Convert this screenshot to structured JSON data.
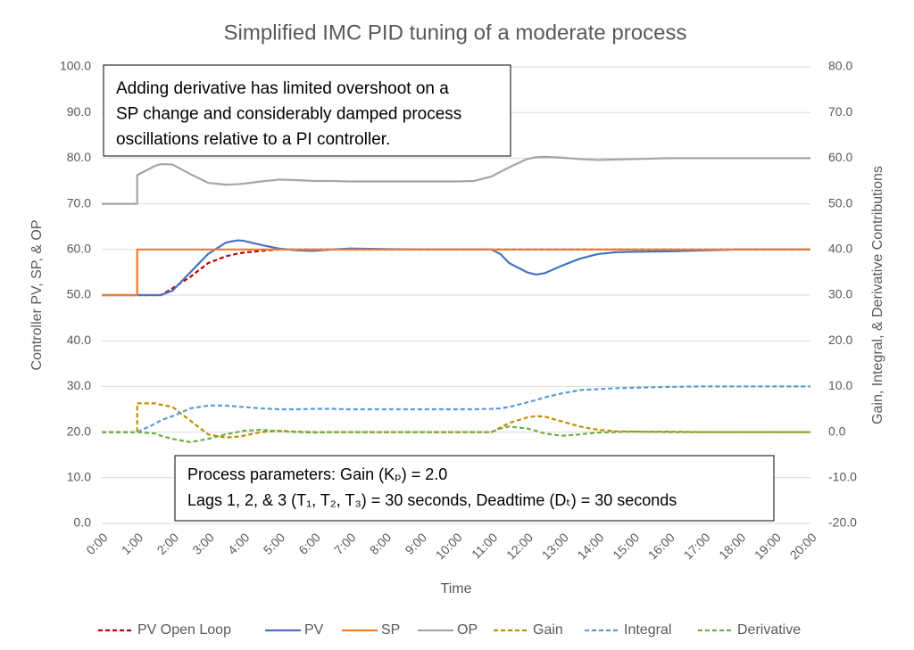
{
  "chart_data": {
    "type": "line",
    "title": "Simplified IMC PID tuning of a moderate process",
    "x_label": "Time",
    "y_label": "Controller PV, SP, & OP",
    "y2_label": "Gain, Integral, & Derivative Contributions",
    "x": [
      0,
      1,
      1,
      1.5,
      1.67,
      2,
      2.5,
      3,
      3.5,
      3.83,
      4,
      4.5,
      5,
      5.5,
      6,
      6.5,
      7,
      8,
      9,
      10,
      10.5,
      11,
      11.25,
      11.5,
      12,
      12.25,
      12.5,
      13,
      13.5,
      14,
      14.5,
      15,
      16,
      17,
      18,
      19,
      20
    ],
    "xlim": [
      0,
      20
    ],
    "xticks": [
      {
        "value": 0,
        "label": "0:00"
      },
      {
        "value": 1,
        "label": "1:00"
      },
      {
        "value": 2,
        "label": "2:00"
      },
      {
        "value": 3,
        "label": "3:00"
      },
      {
        "value": 4,
        "label": "4:00"
      },
      {
        "value": 5,
        "label": "5:00"
      },
      {
        "value": 6,
        "label": "6:00"
      },
      {
        "value": 7,
        "label": "7:00"
      },
      {
        "value": 8,
        "label": "8:00"
      },
      {
        "value": 9,
        "label": "9:00"
      },
      {
        "value": 10,
        "label": "10:00"
      },
      {
        "value": 11,
        "label": "11:00"
      },
      {
        "value": 12,
        "label": "12:00"
      },
      {
        "value": 13,
        "label": "13:00"
      },
      {
        "value": 14,
        "label": "14:00"
      },
      {
        "value": 15,
        "label": "15:00"
      },
      {
        "value": 16,
        "label": "16:00"
      },
      {
        "value": 17,
        "label": "17:00"
      },
      {
        "value": 18,
        "label": "18:00"
      },
      {
        "value": 19,
        "label": "19:00"
      },
      {
        "value": 20,
        "label": "20:00"
      }
    ],
    "ylim": [
      0,
      100
    ],
    "yticks": [
      {
        "value": 0,
        "label": "0.0"
      },
      {
        "value": 10,
        "label": "10.0"
      },
      {
        "value": 20,
        "label": "20.0"
      },
      {
        "value": 30,
        "label": "30.0"
      },
      {
        "value": 40,
        "label": "40.0"
      },
      {
        "value": 50,
        "label": "50.0"
      },
      {
        "value": 60,
        "label": "60.0"
      },
      {
        "value": 70,
        "label": "70.0"
      },
      {
        "value": 80,
        "label": "80.0"
      },
      {
        "value": 90,
        "label": "90.0"
      },
      {
        "value": 100,
        "label": "100.0"
      }
    ],
    "y2lim": [
      -20,
      80
    ],
    "y2ticks": [
      {
        "value": -20,
        "label": "-20.0"
      },
      {
        "value": -10,
        "label": "-10.0"
      },
      {
        "value": 0,
        "label": "0.0"
      },
      {
        "value": 10,
        "label": "10.0"
      },
      {
        "value": 20,
        "label": "20.0"
      },
      {
        "value": 30,
        "label": "30.0"
      },
      {
        "value": 40,
        "label": "40.0"
      },
      {
        "value": 50,
        "label": "50.0"
      },
      {
        "value": 60,
        "label": "60.0"
      },
      {
        "value": 70,
        "label": "70.0"
      },
      {
        "value": 80,
        "label": "80.0"
      }
    ],
    "grid": true,
    "legend": "bottom",
    "series": [
      {
        "name": "PV Open Loop",
        "color": "#c00000",
        "dashed": true,
        "values": [
          50,
          50,
          50,
          50,
          50,
          51.5,
          54,
          57,
          58.5,
          59.1,
          59.3,
          59.7,
          60,
          60,
          60,
          60,
          60,
          60,
          60,
          60,
          60,
          60,
          60,
          60,
          60,
          60,
          60,
          60,
          60,
          60,
          60,
          60,
          60,
          60,
          60,
          60,
          60
        ]
      },
      {
        "name": "PV",
        "color": "#4472c4",
        "dashed": false,
        "values": [
          50,
          50,
          50,
          50,
          50,
          51,
          55,
          59,
          61.5,
          62,
          61.9,
          61,
          60.2,
          59.8,
          59.7,
          60,
          60.2,
          60.1,
          60,
          60,
          60,
          60,
          59,
          57,
          55,
          54.5,
          54.8,
          56.5,
          58,
          59,
          59.4,
          59.5,
          59.6,
          59.8,
          60,
          60,
          60
        ]
      },
      {
        "name": "SP",
        "color": "#ed7d31",
        "dashed": false,
        "values": [
          50,
          50,
          60,
          60,
          60,
          60,
          60,
          60,
          60,
          60,
          60,
          60,
          60,
          60,
          60,
          60,
          60,
          60,
          60,
          60,
          60,
          60,
          60,
          60,
          60,
          60,
          60,
          60,
          60,
          60,
          60,
          60,
          60,
          60,
          60,
          60,
          60
        ]
      },
      {
        "name": "OP",
        "color": "#a5a5a5",
        "dashed": false,
        "values": [
          70,
          70,
          76.3,
          78.3,
          78.7,
          78.6,
          76.5,
          74.6,
          74.2,
          74.3,
          74.4,
          74.9,
          75.3,
          75.2,
          75.0,
          75.0,
          74.9,
          74.9,
          74.9,
          74.9,
          75,
          76,
          77,
          78,
          79.8,
          80.2,
          80.3,
          80.1,
          79.8,
          79.6,
          79.7,
          79.8,
          80,
          80,
          80,
          80,
          80
        ]
      },
      {
        "name": "Gain",
        "color": "#bf9000",
        "dashed": true,
        "axis": "y2",
        "values": [
          0,
          0,
          6.3,
          6.3,
          6.0,
          5.5,
          2.5,
          -0.5,
          -1.2,
          -1.0,
          -0.8,
          0,
          0.3,
          0.1,
          0,
          0,
          0,
          0,
          0,
          0,
          0,
          0,
          1,
          2,
          3.2,
          3.5,
          3.4,
          2.3,
          1.2,
          0.5,
          0.2,
          0.1,
          0.1,
          0,
          0,
          0,
          0
        ]
      },
      {
        "name": "Integral",
        "color": "#5b9bd5",
        "dashed": true,
        "axis": "y2",
        "values": [
          0,
          0,
          0,
          1.8,
          2.6,
          3.5,
          5.2,
          5.8,
          5.8,
          5.6,
          5.5,
          5.2,
          5.0,
          5.0,
          5.1,
          5.1,
          5.0,
          5.0,
          5.0,
          5.0,
          5.0,
          5.1,
          5.2,
          5.5,
          6.5,
          7.0,
          7.6,
          8.5,
          9.2,
          9.4,
          9.6,
          9.7,
          9.9,
          10,
          10,
          10,
          10
        ]
      },
      {
        "name": "Derivative",
        "color": "#70ad47",
        "dashed": true,
        "axis": "y2",
        "values": [
          0,
          0,
          0,
          -0.3,
          -0.8,
          -1.5,
          -2.2,
          -1.5,
          -0.5,
          0,
          0.3,
          0.5,
          0.2,
          0,
          -0.1,
          0,
          0,
          0,
          0,
          0,
          0,
          0,
          0.8,
          1.2,
          0.8,
          0.3,
          -0.3,
          -0.8,
          -0.5,
          -0.1,
          0,
          0.1,
          0,
          0,
          0,
          0,
          0
        ]
      }
    ],
    "annotations": [
      [
        "Adding derivative has limited overshoot on a",
        "SP change and considerably damped process",
        "oscillations relative to a PI controller."
      ],
      [
        "Process parameters:  Gain (Kₚ) = 2.0",
        "Lags 1, 2, & 3 (T₁, T₂, T₃) = 30 seconds, Deadtime (Dₜ) = 30 seconds"
      ]
    ]
  }
}
